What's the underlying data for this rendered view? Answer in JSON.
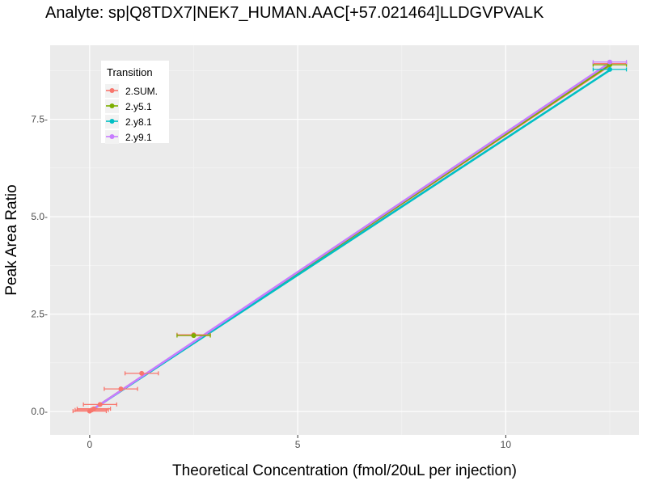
{
  "chart_data": {
    "type": "line",
    "title": "Analyte: sp|Q8TDX7|NEK7_HUMAN.AAC[+57.021464]LLDGVPVALK",
    "xlabel": "Theoretical Concentration (fmol/20uL per injection)",
    "ylabel": "Peak Area Ratio",
    "xlim": [
      -0.95,
      13.2
    ],
    "ylim": [
      -0.6,
      9.4
    ],
    "x_ticks": [
      0,
      5,
      10
    ],
    "x_tick_labels": [
      "0",
      "5",
      "10"
    ],
    "y_ticks": [
      0,
      2.5,
      5,
      7.5
    ],
    "y_tick_labels": [
      "0.0-",
      "2.5-",
      "5.0-",
      "7.5-"
    ],
    "grid": true,
    "legend": {
      "title": "Transition",
      "position": "top-left"
    },
    "series": [
      {
        "name": "2.SUM.",
        "color": "#F8766D",
        "fit": [
          [
            0,
            0.0
          ],
          [
            12.5,
            8.88
          ]
        ],
        "points": [
          {
            "x": 0.0,
            "y": 0.01,
            "xerr": 0.4
          },
          {
            "x": 0.05,
            "y": 0.04,
            "xerr": 0.4
          },
          {
            "x": 0.1,
            "y": 0.07,
            "xerr": 0.4
          },
          {
            "x": 0.25,
            "y": 0.18,
            "xerr": 0.4
          },
          {
            "x": 0.75,
            "y": 0.58,
            "xerr": 0.4
          },
          {
            "x": 1.25,
            "y": 0.98,
            "xerr": 0.4
          },
          {
            "x": 2.5,
            "y": 1.97,
            "xerr": 0.4
          },
          {
            "x": 12.5,
            "y": 8.93,
            "xerr": 0.4
          }
        ]
      },
      {
        "name": "2.y5.1",
        "color": "#7CAE00",
        "fit": [
          [
            0,
            0.0
          ],
          [
            12.5,
            8.9
          ]
        ],
        "points": [
          {
            "x": 2.5,
            "y": 1.95,
            "xerr": 0.4
          },
          {
            "x": 12.5,
            "y": 8.9,
            "xerr": 0.4
          }
        ]
      },
      {
        "name": "2.y8.1",
        "color": "#00BFC4",
        "fit": [
          [
            0,
            0.0
          ],
          [
            12.5,
            8.76
          ]
        ],
        "points": [
          {
            "x": 12.5,
            "y": 8.78,
            "xerr": 0.4
          }
        ]
      },
      {
        "name": "2.y9.1",
        "color": "#C77CFF",
        "fit": [
          [
            0,
            0.0
          ],
          [
            12.5,
            8.95
          ]
        ],
        "points": [
          {
            "x": 12.5,
            "y": 8.97,
            "xerr": 0.4
          }
        ]
      }
    ]
  }
}
